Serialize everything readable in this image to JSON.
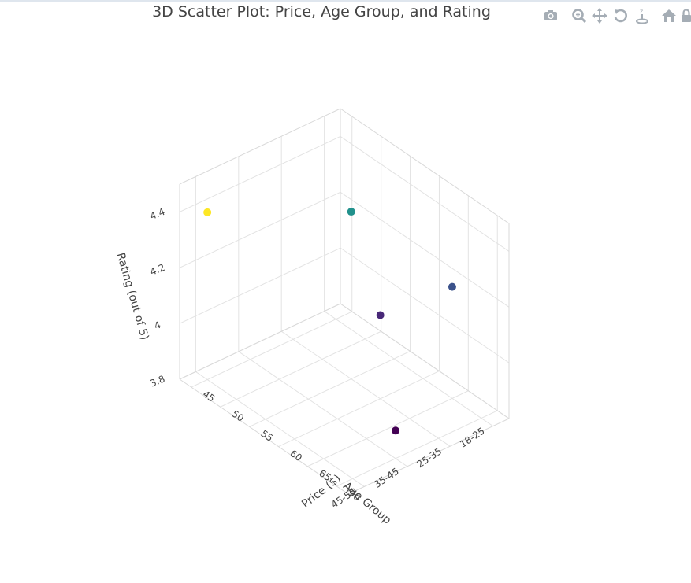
{
  "chart_data": {
    "type": "scatter3d",
    "title": "3D Scatter Plot: Price, Age Group, and Rating",
    "x_axis": {
      "label": "Price ($)",
      "ticks": [
        "45",
        "50",
        "55",
        "60",
        "65",
        "70"
      ],
      "range": [
        43,
        72
      ]
    },
    "y_axis": {
      "label": "Age Group",
      "ticks": [
        "18-25",
        "25-35",
        "35-45",
        "45-55"
      ]
    },
    "z_axis": {
      "label": "Rating (out of 5)",
      "ticks": [
        "3.8",
        "4",
        "4.2",
        "4.4"
      ],
      "range": [
        3.8,
        4.5
      ]
    },
    "points": [
      {
        "price": 70,
        "age_group": "35-45",
        "rating": 3.9,
        "color": "#440154"
      },
      {
        "price": 60,
        "age_group": "25-35",
        "rating": 4.1,
        "color": "#482878"
      },
      {
        "price": 65,
        "age_group": "18-25",
        "rating": 4.2,
        "color": "#3b528b"
      },
      {
        "price": 55,
        "age_group": "25-35",
        "rating": 4.4,
        "color": "#21918c"
      },
      {
        "price": 45,
        "age_group": "45-55",
        "rating": 4.4,
        "color": "#fde725"
      }
    ],
    "colorscale": "viridis",
    "grid": true
  },
  "modebar": {
    "icons": [
      "camera-icon",
      "zoom-icon",
      "pan-icon",
      "orbit-rotate-icon",
      "turntable-icon",
      "home-icon"
    ],
    "icon_color": "#9aa4ae"
  }
}
